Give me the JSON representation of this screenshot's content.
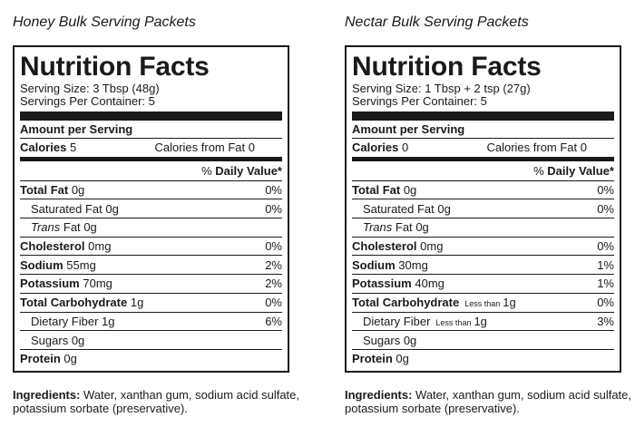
{
  "products": [
    {
      "title": "Honey Bulk Serving Packets",
      "header": "Nutrition Facts",
      "serving_size": "Serving Size: 3 Tbsp (48g)",
      "servings_per_container": "Servings Per Container: 5",
      "amount_per_serving": "Amount per Serving",
      "calories_label": "Calories",
      "calories_value": "5",
      "calories_from_fat": "Calories from Fat 0",
      "daily_value_pct": "%",
      "daily_value_label": "Daily Value*",
      "total_fat": {
        "label": "Total Fat",
        "amount": "0g",
        "dv": "0%"
      },
      "saturated_fat": {
        "label": "Saturated Fat",
        "amount": "0g",
        "dv": "0%"
      },
      "trans_fat": {
        "label": "Trans",
        "label_rest": "Fat",
        "amount": "0g"
      },
      "cholesterol": {
        "label": "Cholesterol",
        "amount": "0mg",
        "dv": "0%"
      },
      "sodium": {
        "label": "Sodium",
        "amount": "55mg",
        "dv": "2%"
      },
      "potassium": {
        "label": "Potassium",
        "amount": "70mg",
        "dv": "2%"
      },
      "total_carbohydrate": {
        "label": "Total Carbohydrate",
        "qualifier": "",
        "amount": "1g",
        "dv": "0%"
      },
      "dietary_fiber": {
        "label": "Dietary Fiber",
        "qualifier": "",
        "amount": "1g",
        "dv": "6%"
      },
      "sugars": {
        "label": "Sugars",
        "amount": "0g"
      },
      "protein": {
        "label": "Protein",
        "amount": "0g"
      },
      "ingredients_label": "Ingredients:",
      "ingredients_text": "Water, xanthan gum, sodium acid sulfate, potassium sorbate (preservative)."
    },
    {
      "title": "Nectar Bulk Serving Packets",
      "header": "Nutrition Facts",
      "serving_size": "Serving Size: 1 Tbsp + 2 tsp (27g)",
      "servings_per_container": "Servings Per Container: 5",
      "amount_per_serving": "Amount per Serving",
      "calories_label": "Calories",
      "calories_value": "0",
      "calories_from_fat": "Calories from Fat 0",
      "daily_value_pct": "%",
      "daily_value_label": "Daily Value*",
      "total_fat": {
        "label": "Total Fat",
        "amount": "0g",
        "dv": "0%"
      },
      "saturated_fat": {
        "label": "Saturated Fat",
        "amount": "0g",
        "dv": "0%"
      },
      "trans_fat": {
        "label": "Trans",
        "label_rest": "Fat",
        "amount": "0g"
      },
      "cholesterol": {
        "label": "Cholesterol",
        "amount": "0mg",
        "dv": "0%"
      },
      "sodium": {
        "label": "Sodium",
        "amount": "30mg",
        "dv": "1%"
      },
      "potassium": {
        "label": "Potassium",
        "amount": "40mg",
        "dv": "1%"
      },
      "total_carbohydrate": {
        "label": "Total Carbohydrate",
        "qualifier": "Less than",
        "amount": "1g",
        "dv": "0%"
      },
      "dietary_fiber": {
        "label": "Dietary Fiber",
        "qualifier": "Less than",
        "amount": "1g",
        "dv": "3%"
      },
      "sugars": {
        "label": "Sugars",
        "amount": "0g"
      },
      "protein": {
        "label": "Protein",
        "amount": "0g"
      },
      "ingredients_label": "Ingredients:",
      "ingredients_text": "Water, xanthan gum, sodium acid sulfate, potassium sorbate (preservative)."
    }
  ]
}
